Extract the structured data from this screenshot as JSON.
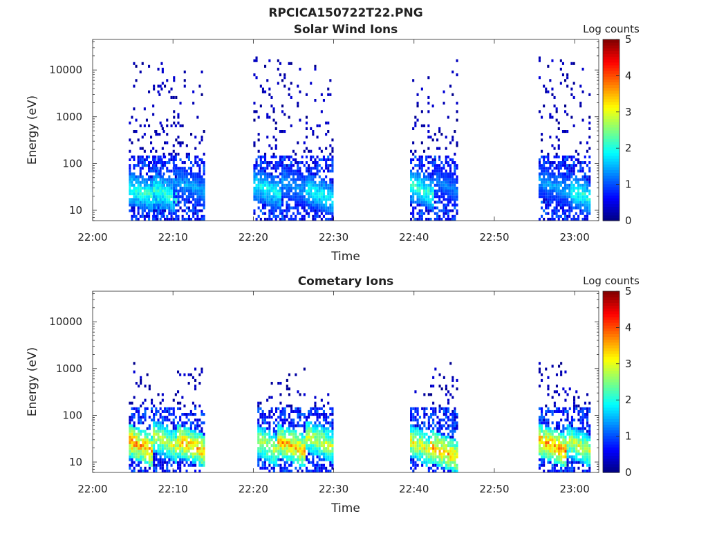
{
  "figure_title": "RPCICA150722T22.PNG",
  "colors": {
    "jet": [
      "#00007f",
      "#0000ff",
      "#007fff",
      "#00ffff",
      "#7fff7f",
      "#ffff00",
      "#ff7f00",
      "#ff0000",
      "#7f0000"
    ]
  },
  "chart_data": [
    {
      "type": "heatmap",
      "title": "Solar Wind Ions",
      "xlabel": "Time",
      "ylabel": "Energy (eV)",
      "x_tick_labels": [
        "22:00",
        "22:10",
        "22:20",
        "22:30",
        "22:40",
        "22:50",
        "23:00"
      ],
      "x_ticks_minutes": [
        0,
        10,
        20,
        30,
        40,
        50,
        60
      ],
      "xlim_minutes": [
        0,
        63
      ],
      "y_scale": "log",
      "y_tick_labels": [
        "10",
        "100",
        "1000",
        "10000"
      ],
      "y_ticks": [
        10,
        100,
        1000,
        10000
      ],
      "ylim": [
        6,
        45000
      ],
      "colorbar": {
        "label": "Log counts",
        "range": [
          0,
          5
        ],
        "ticks": [
          "0",
          "1",
          "2",
          "3",
          "4",
          "5"
        ]
      },
      "scans": [
        {
          "start": "22:04:30",
          "end": "22:09:00",
          "max_energy": 15000,
          "low_energy_peak": 20,
          "peak_log_counts": 2.2
        },
        {
          "start": "22:07:30",
          "end": "22:10:30",
          "max_energy": 15000,
          "low_energy_peak": 20,
          "peak_log_counts": 2.2
        },
        {
          "start": "22:10:00",
          "end": "22:14:00",
          "max_energy": 15000,
          "low_energy_peak": 30,
          "peak_log_counts": 1.5
        },
        {
          "start": "22:20:00",
          "end": "22:23:30",
          "max_energy": 15000,
          "low_energy_peak": 25,
          "peak_log_counts": 2.0
        },
        {
          "start": "22:23:30",
          "end": "22:26:30",
          "max_energy": 15000,
          "low_energy_peak": 30,
          "peak_log_counts": 1.5
        },
        {
          "start": "22:26:30",
          "end": "22:30:00",
          "max_energy": 15000,
          "low_energy_peak": 20,
          "peak_log_counts": 2.0
        },
        {
          "start": "22:39:30",
          "end": "22:42:30",
          "max_energy": 15000,
          "low_energy_peak": 25,
          "peak_log_counts": 2.2
        },
        {
          "start": "22:42:30",
          "end": "22:45:30",
          "max_energy": 15000,
          "low_energy_peak": 30,
          "peak_log_counts": 1.3
        },
        {
          "start": "22:55:30",
          "end": "22:59:30",
          "max_energy": 15000,
          "low_energy_peak": 30,
          "peak_log_counts": 1.5
        },
        {
          "start": "22:59:30",
          "end": "23:02:00",
          "max_energy": 15000,
          "low_energy_peak": 20,
          "peak_log_counts": 2.2
        }
      ]
    },
    {
      "type": "heatmap",
      "title": "Cometary Ions",
      "xlabel": "Time",
      "ylabel": "Energy (eV)",
      "x_tick_labels": [
        "22:00",
        "22:10",
        "22:20",
        "22:30",
        "22:40",
        "22:50",
        "23:00"
      ],
      "x_ticks_minutes": [
        0,
        10,
        20,
        30,
        40,
        50,
        60
      ],
      "xlim_minutes": [
        0,
        63
      ],
      "y_scale": "log",
      "y_tick_labels": [
        "10",
        "100",
        "1000",
        "10000"
      ],
      "y_ticks": [
        10,
        100,
        1000,
        10000
      ],
      "ylim": [
        6,
        45000
      ],
      "colorbar": {
        "label": "Log counts",
        "range": [
          0,
          5
        ],
        "ticks": [
          "0",
          "1",
          "2",
          "3",
          "4",
          "5"
        ]
      },
      "scans": [
        {
          "start": "22:04:30",
          "end": "22:07:30",
          "max_energy": 1000,
          "low_energy_peak": 20,
          "peak_log_counts": 3.8
        },
        {
          "start": "22:07:30",
          "end": "22:10:30",
          "max_energy": 300,
          "low_energy_peak": 25,
          "peak_log_counts": 3.0
        },
        {
          "start": "22:10:30",
          "end": "22:14:00",
          "max_energy": 1000,
          "low_energy_peak": 20,
          "peak_log_counts": 3.6
        },
        {
          "start": "22:20:30",
          "end": "22:23:00",
          "max_energy": 300,
          "low_energy_peak": 20,
          "peak_log_counts": 3.0
        },
        {
          "start": "22:23:00",
          "end": "22:26:30",
          "max_energy": 1000,
          "low_energy_peak": 20,
          "peak_log_counts": 3.6
        },
        {
          "start": "22:26:30",
          "end": "22:30:00",
          "max_energy": 300,
          "low_energy_peak": 25,
          "peak_log_counts": 3.0
        },
        {
          "start": "22:39:30",
          "end": "22:42:00",
          "max_energy": 300,
          "low_energy_peak": 20,
          "peak_log_counts": 3.2
        },
        {
          "start": "22:42:00",
          "end": "22:45:30",
          "max_energy": 1000,
          "low_energy_peak": 15,
          "peak_log_counts": 3.6
        },
        {
          "start": "22:55:30",
          "end": "22:59:00",
          "max_energy": 1000,
          "low_energy_peak": 20,
          "peak_log_counts": 3.8
        },
        {
          "start": "22:59:00",
          "end": "23:02:00",
          "max_energy": 300,
          "low_energy_peak": 20,
          "peak_log_counts": 3.0
        }
      ]
    }
  ]
}
